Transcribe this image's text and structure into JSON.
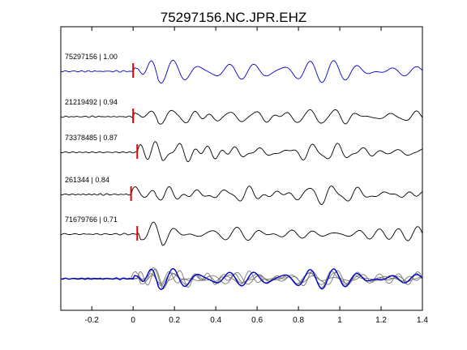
{
  "chart_data": {
    "type": "line",
    "title": "75297156.NC.JPR.EHZ",
    "xlabel": "",
    "ylabel": "",
    "xlim": [
      -0.35,
      1.4
    ],
    "xticks": [
      -0.2,
      0,
      0.2,
      0.4,
      0.6,
      0.8,
      1,
      1.2,
      1.4
    ],
    "xtick_labels": [
      "-0.2",
      "0",
      "0.2",
      "0.4",
      "0.6",
      "0.8",
      "1",
      "1.2",
      "1.4"
    ],
    "grid": false,
    "pick_color": "#e00000",
    "traces": [
      {
        "id": "75297156",
        "cc": "1.00",
        "label": "75297156 | 1.00",
        "color": "#0000cc",
        "pick_time": 0.0
      },
      {
        "id": "21219492",
        "cc": "0.94",
        "label": "21219492 | 0.94",
        "color": "#000000",
        "pick_time": 0.0
      },
      {
        "id": "73378485",
        "cc": "0.87",
        "label": "73378485 | 0.87",
        "color": "#000000",
        "pick_time": 0.02
      },
      {
        "id": "261344",
        "cc": "0.84",
        "label": "261344 | 0.84",
        "color": "#000000",
        "pick_time": -0.01
      },
      {
        "id": "71679766",
        "cc": "0.71",
        "label": "71679766 | 0.71",
        "color": "#000000",
        "pick_time": 0.02
      }
    ],
    "stack": {
      "reference_color": "#0000cc",
      "other_color": "#777777"
    }
  }
}
